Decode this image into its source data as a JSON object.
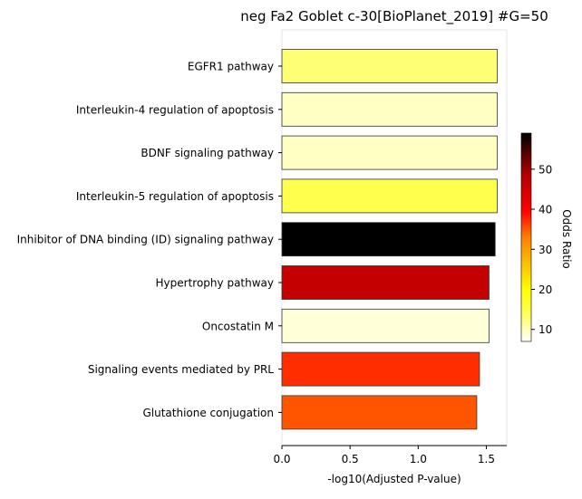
{
  "chart_data": {
    "type": "bar",
    "orientation": "horizontal",
    "title": "neg Fa2 Goblet c-30[BioPlanet_2019] #G=50",
    "xlabel": "-log10(Adjusted P-value)",
    "ylabel": "",
    "xlim": [
      0,
      1.65
    ],
    "xticks": [
      0.0,
      0.5,
      1.0,
      1.5
    ],
    "xtick_labels": [
      "0.0",
      "0.5",
      "1.0",
      "1.5"
    ],
    "grid": false,
    "categories": [
      "EGFR1 pathway",
      "Interleukin-4 regulation of apoptosis",
      "BDNF signaling pathway",
      "Interleukin-5 regulation of apoptosis",
      "Inhibitor of DNA binding (ID) signaling pathway",
      "Hypertrophy pathway",
      "Oncostatin M",
      "Signaling events mediated by PRL",
      "Glutathione conjugation"
    ],
    "values": [
      1.58,
      1.58,
      1.58,
      1.58,
      1.565,
      1.52,
      1.52,
      1.45,
      1.43
    ],
    "color_values": [
      14,
      10,
      10,
      16,
      59,
      44,
      9,
      36,
      33
    ],
    "colorbar": {
      "label": "Odds Ratio",
      "colormap": "hot_r",
      "range": [
        7,
        59
      ],
      "ticks": [
        10,
        20,
        30,
        40,
        50
      ],
      "tick_labels": [
        "10",
        "20",
        "30",
        "40",
        "50"
      ]
    }
  }
}
